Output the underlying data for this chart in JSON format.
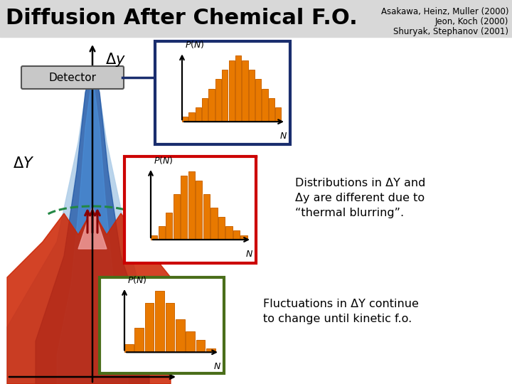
{
  "title": "Diffusion After Chemical F.O.",
  "citation_line1": "Asakawa, Heinz, Muller (2000)",
  "citation_line2": "Jeon, Koch (2000)",
  "citation_line3": "Shuryak, Stephanov (2001)",
  "bg_color": "#ffffff",
  "title_color": "#000000",
  "title_fontsize": 22,
  "bar_color": "#E87900",
  "bar_edge_color": "#CC6600",
  "hist1_values": [
    1,
    2,
    3,
    5,
    7,
    9,
    11,
    13,
    14,
    13,
    11,
    9,
    7,
    5,
    3
  ],
  "hist2_values": [
    1,
    3,
    6,
    10,
    14,
    15,
    13,
    10,
    7,
    5,
    3,
    2,
    1
  ],
  "hist3_values": [
    2,
    6,
    12,
    15,
    12,
    8,
    5,
    3,
    1
  ],
  "box1_color": "#1a2e6e",
  "box2_color": "#cc0000",
  "box3_color": "#4a6e1a",
  "light_blue": "#aecde8",
  "deep_blue": "#1a52a3",
  "mid_blue": "#4a90d9",
  "annotation1": "Distributions in ΔY and\nΔy are different due to\n“thermal blurring”.",
  "annotation2": "Fluctuations in ΔY continue\nto change until kinetic f.o.",
  "delta_y_label": "$\\Delta y$",
  "delta_Y_label": "$\\Delta Y$",
  "detector_label": "Detector"
}
